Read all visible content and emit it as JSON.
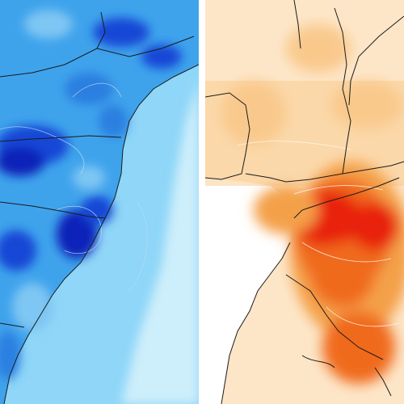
{
  "panels": [
    {
      "id": "left",
      "variable_kind": "cool-anomaly",
      "colors": {
        "ocean_far": "#cdeefb",
        "ocean_near": "#8fd6f8",
        "land_base": "#3fa3ec",
        "land_mid": "#2b7fe0",
        "land_dark": "#1846d6",
        "land_deep": "#0f24b8",
        "land_light": "#7ec6f3",
        "border": "#1b1b1b",
        "contour": "#b9dcf6"
      }
    },
    {
      "id": "right",
      "variable_kind": "warm-anomaly",
      "colors": {
        "ocean": "#ffffff",
        "land_pale": "#fde6c8",
        "land_light": "#f9c98c",
        "land_mid": "#f4a048",
        "land_strong": "#f06a1e",
        "land_peak": "#e8220e",
        "border": "#1b1b1b",
        "contour": "#ffffff"
      }
    }
  ],
  "divider_color": "#ffffff"
}
